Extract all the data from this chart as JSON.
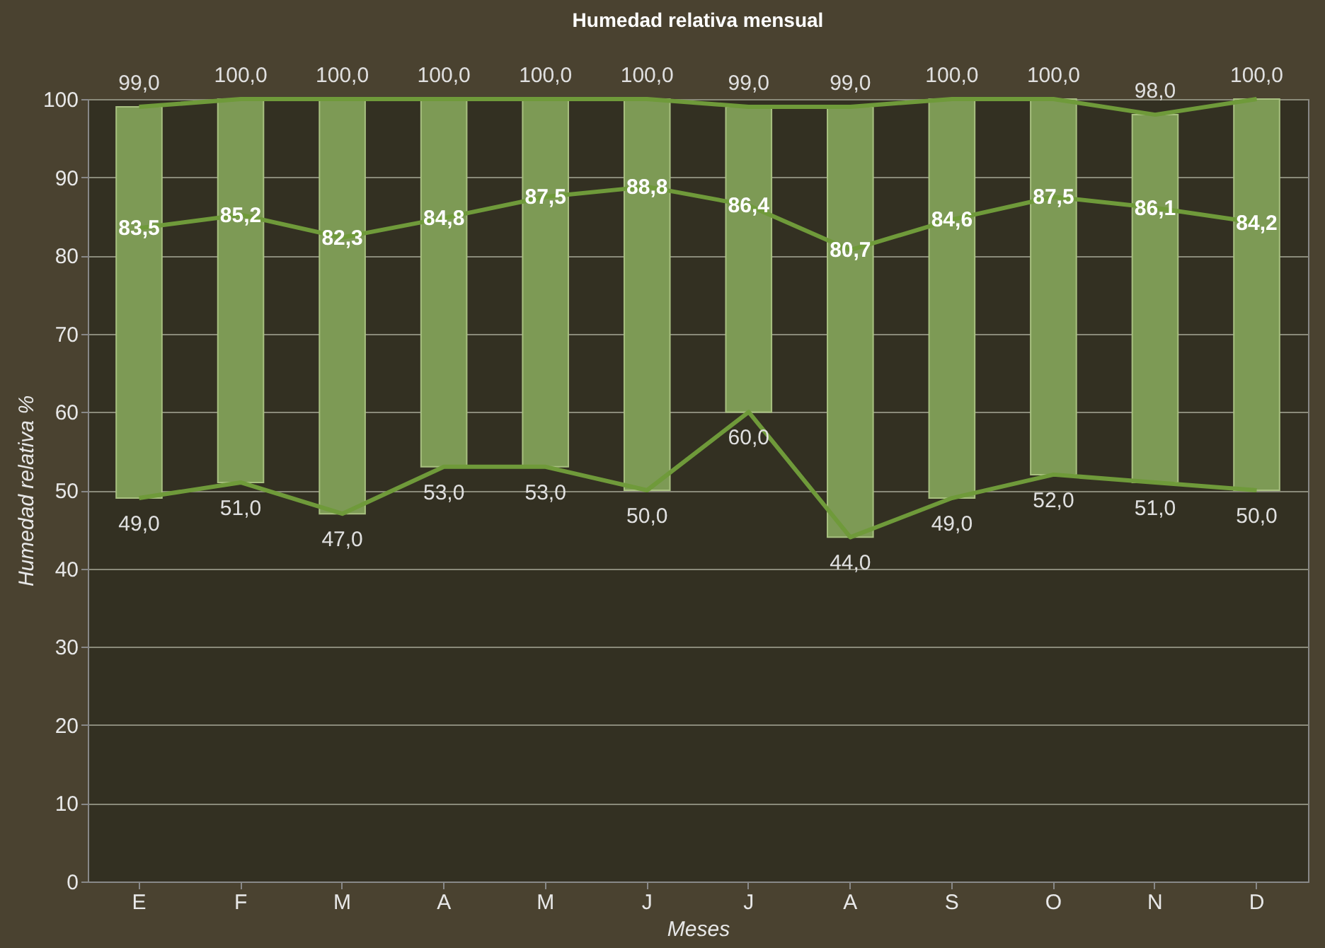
{
  "chart_data": {
    "type": "bar",
    "title": "Humedad relativa mensual",
    "xlabel": "Meses",
    "ylabel": "Humedad relativa %",
    "categories": [
      "E",
      "F",
      "M",
      "A",
      "M",
      "J",
      "J",
      "A",
      "S",
      "O",
      "N",
      "D"
    ],
    "series": [
      {
        "color": "#7d9a55",
        "base": [
          49,
          51,
          47,
          53,
          53,
          50,
          60,
          44,
          49,
          52,
          51,
          50
        ],
        "values": [
          50,
          49,
          53,
          47,
          47,
          50,
          39,
          55,
          51,
          48,
          47,
          50
        ]
      },
      {
        "type": "line",
        "color": "#6f9a3a",
        "values": [
          99,
          100,
          100,
          100,
          100,
          100,
          99,
          99,
          100,
          100,
          98,
          100
        ],
        "value_labels": [
          "99,0",
          "100,0",
          "100,0",
          "100,0",
          "100,0",
          "100,0",
          "99,0",
          "99,0",
          "100,0",
          "100,0",
          "98,0",
          "100,0"
        ]
      },
      {
        "type": "line",
        "color": "#6f9a3a",
        "values": [
          83.5,
          85.2,
          82.3,
          84.8,
          87.5,
          88.8,
          86.4,
          80.7,
          84.6,
          87.5,
          86.1,
          84.2
        ],
        "value_labels": [
          "83,5",
          "85,2",
          "82,3",
          "84,8",
          "87,5",
          "88,8",
          "86,4",
          "80,7",
          "84,6",
          "87,5",
          "86,1",
          "84,2"
        ]
      },
      {
        "type": "line",
        "color": "#6f9a3a",
        "values": [
          49,
          51,
          47,
          53,
          53,
          50,
          60,
          44,
          49,
          52,
          51,
          50
        ],
        "value_labels": [
          "49,0",
          "51,0",
          "47,0",
          "53,0",
          "53,0",
          "50,0",
          "60,0",
          "44,0",
          "49,0",
          "52,0",
          "51,0",
          "50,0"
        ]
      }
    ],
    "ylim": [
      0,
      100
    ],
    "yticks": [
      0,
      10,
      20,
      30,
      40,
      50,
      60,
      70,
      80,
      90,
      100
    ],
    "grid": "y",
    "marker": "none",
    "line_style": "solid"
  }
}
